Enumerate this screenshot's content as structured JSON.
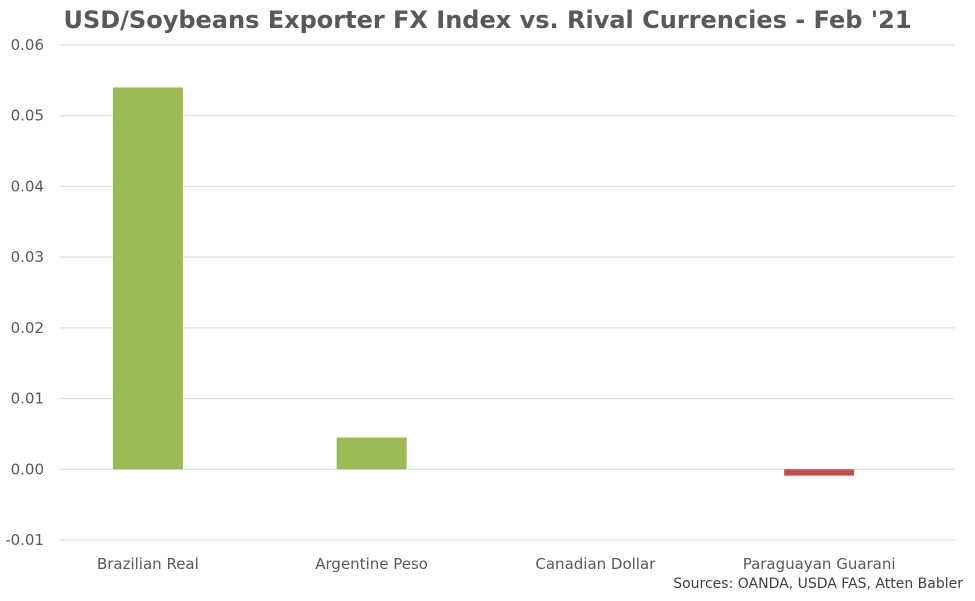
{
  "chart_data": {
    "type": "bar",
    "title": "USD/Soybeans Exporter FX Index vs. Rival Currencies - Feb '21",
    "categories": [
      "Brazilian Real",
      "Argentine Peso",
      "Canadian Dollar",
      "Paraguayan Guarani"
    ],
    "values": [
      0.054,
      0.0045,
      0.0,
      -0.0009
    ],
    "ylim": [
      -0.01,
      0.06
    ],
    "yticks": [
      -0.01,
      0.0,
      0.01,
      0.02,
      0.03,
      0.04,
      0.05,
      0.06
    ],
    "ytick_labels": [
      "-0.01",
      "0.00",
      "0.01",
      "0.02",
      "0.03",
      "0.04",
      "0.05",
      "0.06"
    ],
    "grid": true,
    "xlabel": "",
    "ylabel": "",
    "positive_color": "#9BBB59",
    "negative_color": "#C0504D",
    "grid_color": "#D9D9D9",
    "source_note": "Sources: OANDA, USDA FAS, Atten Babler"
  }
}
